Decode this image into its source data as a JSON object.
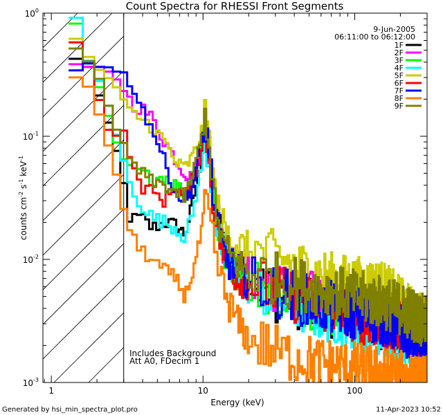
{
  "chart_data": {
    "type": "line",
    "title": "Count Spectra for RHESSI Front Segments",
    "xlabel": "Energy (keV)",
    "ylabel_parts": {
      "base": "counts cm",
      "exp1": "-2",
      "mid": " s",
      "exp2": "-1",
      "unit": " keV",
      "exp3": "-1"
    },
    "xscale": "log",
    "yscale": "log",
    "xlim": [
      0.88,
      300
    ],
    "ylim": [
      0.001,
      1.0
    ],
    "x_ticks": [
      {
        "value": 1,
        "label": "1"
      },
      {
        "value": 10,
        "label": "10"
      },
      {
        "value": 100,
        "label": "100"
      }
    ],
    "y_ticks": [
      {
        "value": 1,
        "base": "10",
        "exp": "0"
      },
      {
        "value": 0.1,
        "base": "10",
        "exp": "-1"
      },
      {
        "value": 0.01,
        "base": "10",
        "exp": "-2"
      },
      {
        "value": 0.001,
        "base": "10",
        "exp": "-3"
      }
    ],
    "legend": {
      "date": "9-Jun-2005",
      "time_range": "06:11:00 to 06:12:00",
      "placement": "top-right"
    },
    "annotations": [
      "Includes Background",
      "Att A0, FDecim 1"
    ],
    "shaded_region": {
      "xmin": 0.88,
      "xmax": 3.0,
      "style": "hatched"
    },
    "series": [
      {
        "name": "1F",
        "color": "#000000",
        "x": [
          1.3,
          1.6,
          1.9,
          2.2,
          2.5,
          2.8,
          3.0,
          3.4,
          3.8,
          4.5,
          5.5,
          6.5,
          7.5,
          8.5,
          9.5,
          10.3,
          11,
          12,
          14,
          17,
          20,
          25,
          30,
          40,
          50,
          70,
          100,
          150,
          200,
          250,
          300
        ],
        "y": [
          0.42,
          0.38,
          0.22,
          0.13,
          0.08,
          0.05,
          0.023,
          0.021,
          0.022,
          0.018,
          0.02,
          0.019,
          0.016,
          0.03,
          0.06,
          0.12,
          0.06,
          0.025,
          0.012,
          0.008,
          0.0065,
          0.006,
          0.005,
          0.0045,
          0.0042,
          0.0038,
          0.0035,
          0.003,
          0.0028,
          0.0022,
          0.002
        ]
      },
      {
        "name": "2F",
        "color": "#ff00ff",
        "x": [
          1.3,
          1.6,
          1.9,
          2.2,
          2.5,
          2.8,
          3.0,
          3.4,
          3.8,
          4.5,
          5.5,
          6.5,
          7.5,
          8.5,
          9.5,
          10.3,
          11,
          12,
          14,
          17,
          20,
          25,
          30,
          40,
          50,
          70,
          100,
          150,
          200,
          250,
          300
        ],
        "y": [
          0.38,
          0.35,
          0.36,
          0.33,
          0.3,
          0.25,
          0.21,
          0.18,
          0.17,
          0.14,
          0.09,
          0.065,
          0.05,
          0.045,
          0.08,
          0.14,
          0.06,
          0.022,
          0.011,
          0.0085,
          0.0075,
          0.0068,
          0.006,
          0.0055,
          0.005,
          0.0045,
          0.004,
          0.0036,
          0.0032,
          0.0028,
          0.0025
        ]
      },
      {
        "name": "3F",
        "color": "#00ff00",
        "x": [
          1.3,
          1.6,
          1.9,
          2.2,
          2.5,
          2.8,
          3.0,
          3.4,
          3.8,
          4.5,
          5.5,
          6.5,
          7.5,
          8.5,
          9.5,
          10.3,
          11,
          12,
          14,
          17,
          20,
          25,
          30,
          40,
          50,
          70,
          100,
          150,
          200,
          250,
          300
        ],
        "y": [
          0.8,
          0.4,
          0.25,
          0.15,
          0.09,
          0.065,
          0.06,
          0.055,
          0.05,
          0.045,
          0.048,
          0.04,
          0.035,
          0.05,
          0.08,
          0.16,
          0.07,
          0.02,
          0.01,
          0.0075,
          0.0065,
          0.006,
          0.0055,
          0.005,
          0.0045,
          0.004,
          0.0037,
          0.0033,
          0.003,
          0.0026,
          0.0022
        ]
      },
      {
        "name": "4F",
        "color": "#00ffff",
        "x": [
          1.3,
          1.6,
          1.9,
          2.2,
          2.5,
          2.8,
          3.0,
          3.4,
          3.8,
          4.5,
          5.5,
          6.5,
          7.5,
          8.5,
          9.5,
          10.3,
          11,
          12,
          14,
          17,
          20,
          25,
          30,
          40,
          50,
          70,
          100,
          150,
          200,
          250,
          300
        ],
        "y": [
          0.9,
          0.42,
          0.3,
          0.18,
          0.11,
          0.07,
          0.045,
          0.035,
          0.028,
          0.022,
          0.02,
          0.018,
          0.015,
          0.025,
          0.05,
          0.09,
          0.05,
          0.018,
          0.01,
          0.007,
          0.006,
          0.0055,
          0.005,
          0.0042,
          0.0038,
          0.0034,
          0.003,
          0.0027,
          0.0024,
          0.0021,
          0.0018
        ]
      },
      {
        "name": "5F",
        "color": "#cccc00",
        "x": [
          1.3,
          1.6,
          1.9,
          2.2,
          2.5,
          2.8,
          3.0,
          3.4,
          3.8,
          4.5,
          5.5,
          6.5,
          7.5,
          8.5,
          9.5,
          10.3,
          11,
          12,
          14,
          17,
          20,
          25,
          30,
          40,
          50,
          70,
          100,
          150,
          200,
          250,
          300
        ],
        "y": [
          0.6,
          0.45,
          0.35,
          0.3,
          0.25,
          0.2,
          0.17,
          0.15,
          0.14,
          0.12,
          0.09,
          0.06,
          0.055,
          0.07,
          0.1,
          0.15,
          0.08,
          0.03,
          0.016,
          0.013,
          0.012,
          0.011,
          0.0105,
          0.009,
          0.008,
          0.007,
          0.0065,
          0.006,
          0.0045,
          0.0035,
          0.003
        ]
      },
      {
        "name": "6F",
        "color": "#ff0000",
        "x": [
          1.3,
          1.6,
          1.9,
          2.2,
          2.5,
          2.8,
          3.0,
          3.4,
          3.8,
          4.5,
          5.5,
          6.5,
          7.5,
          8.5,
          9.5,
          10.3,
          11,
          12,
          14,
          17,
          20,
          25,
          30,
          40,
          50,
          70,
          100,
          150,
          200,
          250,
          300
        ],
        "y": [
          0.6,
          0.42,
          0.2,
          0.12,
          0.1,
          0.11,
          0.1,
          0.05,
          0.04,
          0.035,
          0.03,
          0.04,
          0.03,
          0.045,
          0.07,
          0.12,
          0.05,
          0.02,
          0.0095,
          0.007,
          0.0065,
          0.006,
          0.0055,
          0.005,
          0.0045,
          0.004,
          0.0035,
          0.003,
          0.0028,
          0.0025,
          0.0023
        ]
      },
      {
        "name": "7F",
        "color": "#0000ff",
        "x": [
          1.3,
          1.6,
          1.9,
          2.2,
          2.5,
          2.8,
          3.0,
          3.4,
          3.8,
          4.5,
          5.5,
          6.5,
          7.5,
          8.5,
          9.5,
          10.3,
          11,
          12,
          14,
          17,
          20,
          25,
          30,
          40,
          50,
          70,
          100,
          150,
          200,
          250,
          300
        ],
        "y": [
          0.35,
          0.4,
          0.38,
          0.36,
          0.34,
          0.33,
          0.3,
          0.25,
          0.17,
          0.12,
          0.06,
          0.035,
          0.03,
          0.04,
          0.08,
          0.13,
          0.06,
          0.02,
          0.01,
          0.008,
          0.0065,
          0.006,
          0.0055,
          0.005,
          0.0045,
          0.004,
          0.0037,
          0.0033,
          0.0028,
          0.0024,
          0.002
        ]
      },
      {
        "name": "8F",
        "color": "#ff8000",
        "x": [
          1.3,
          1.6,
          1.9,
          2.2,
          2.5,
          2.8,
          3.0,
          3.4,
          3.8,
          4.5,
          5.5,
          6.5,
          7.5,
          8.5,
          9.5,
          10.3,
          11,
          12,
          14,
          17,
          20,
          25,
          30,
          40,
          50,
          70,
          100,
          150,
          200,
          250,
          300
        ],
        "y": [
          0.3,
          0.25,
          0.15,
          0.09,
          0.055,
          0.028,
          0.02,
          0.014,
          0.012,
          0.01,
          0.008,
          0.007,
          0.005,
          0.008,
          0.015,
          0.03,
          0.02,
          0.01,
          0.005,
          0.003,
          0.0022,
          0.002,
          0.0018,
          0.0016,
          0.0015,
          0.0014,
          0.0013,
          0.0012,
          0.0011,
          0.001,
          0.001
        ]
      },
      {
        "name": "9F",
        "color": "#808000",
        "x": [
          1.3,
          1.6,
          1.9,
          2.2,
          2.5,
          2.8,
          3.0,
          3.4,
          3.8,
          4.5,
          5.5,
          6.5,
          7.5,
          8.5,
          9.5,
          10.3,
          11,
          12,
          14,
          17,
          20,
          25,
          30,
          40,
          50,
          70,
          100,
          150,
          200,
          250,
          300
        ],
        "y": [
          0.5,
          0.4,
          0.3,
          0.18,
          0.12,
          0.09,
          0.07,
          0.06,
          0.05,
          0.042,
          0.04,
          0.035,
          0.032,
          0.05,
          0.09,
          0.15,
          0.07,
          0.022,
          0.012,
          0.009,
          0.008,
          0.0075,
          0.007,
          0.0065,
          0.006,
          0.0055,
          0.005,
          0.0045,
          0.004,
          0.0035,
          0.003
        ]
      }
    ]
  },
  "footer": {
    "left": "Generated by hsi_min_spectra_plot.pro",
    "right": "11-Apr-2023 10:52"
  }
}
